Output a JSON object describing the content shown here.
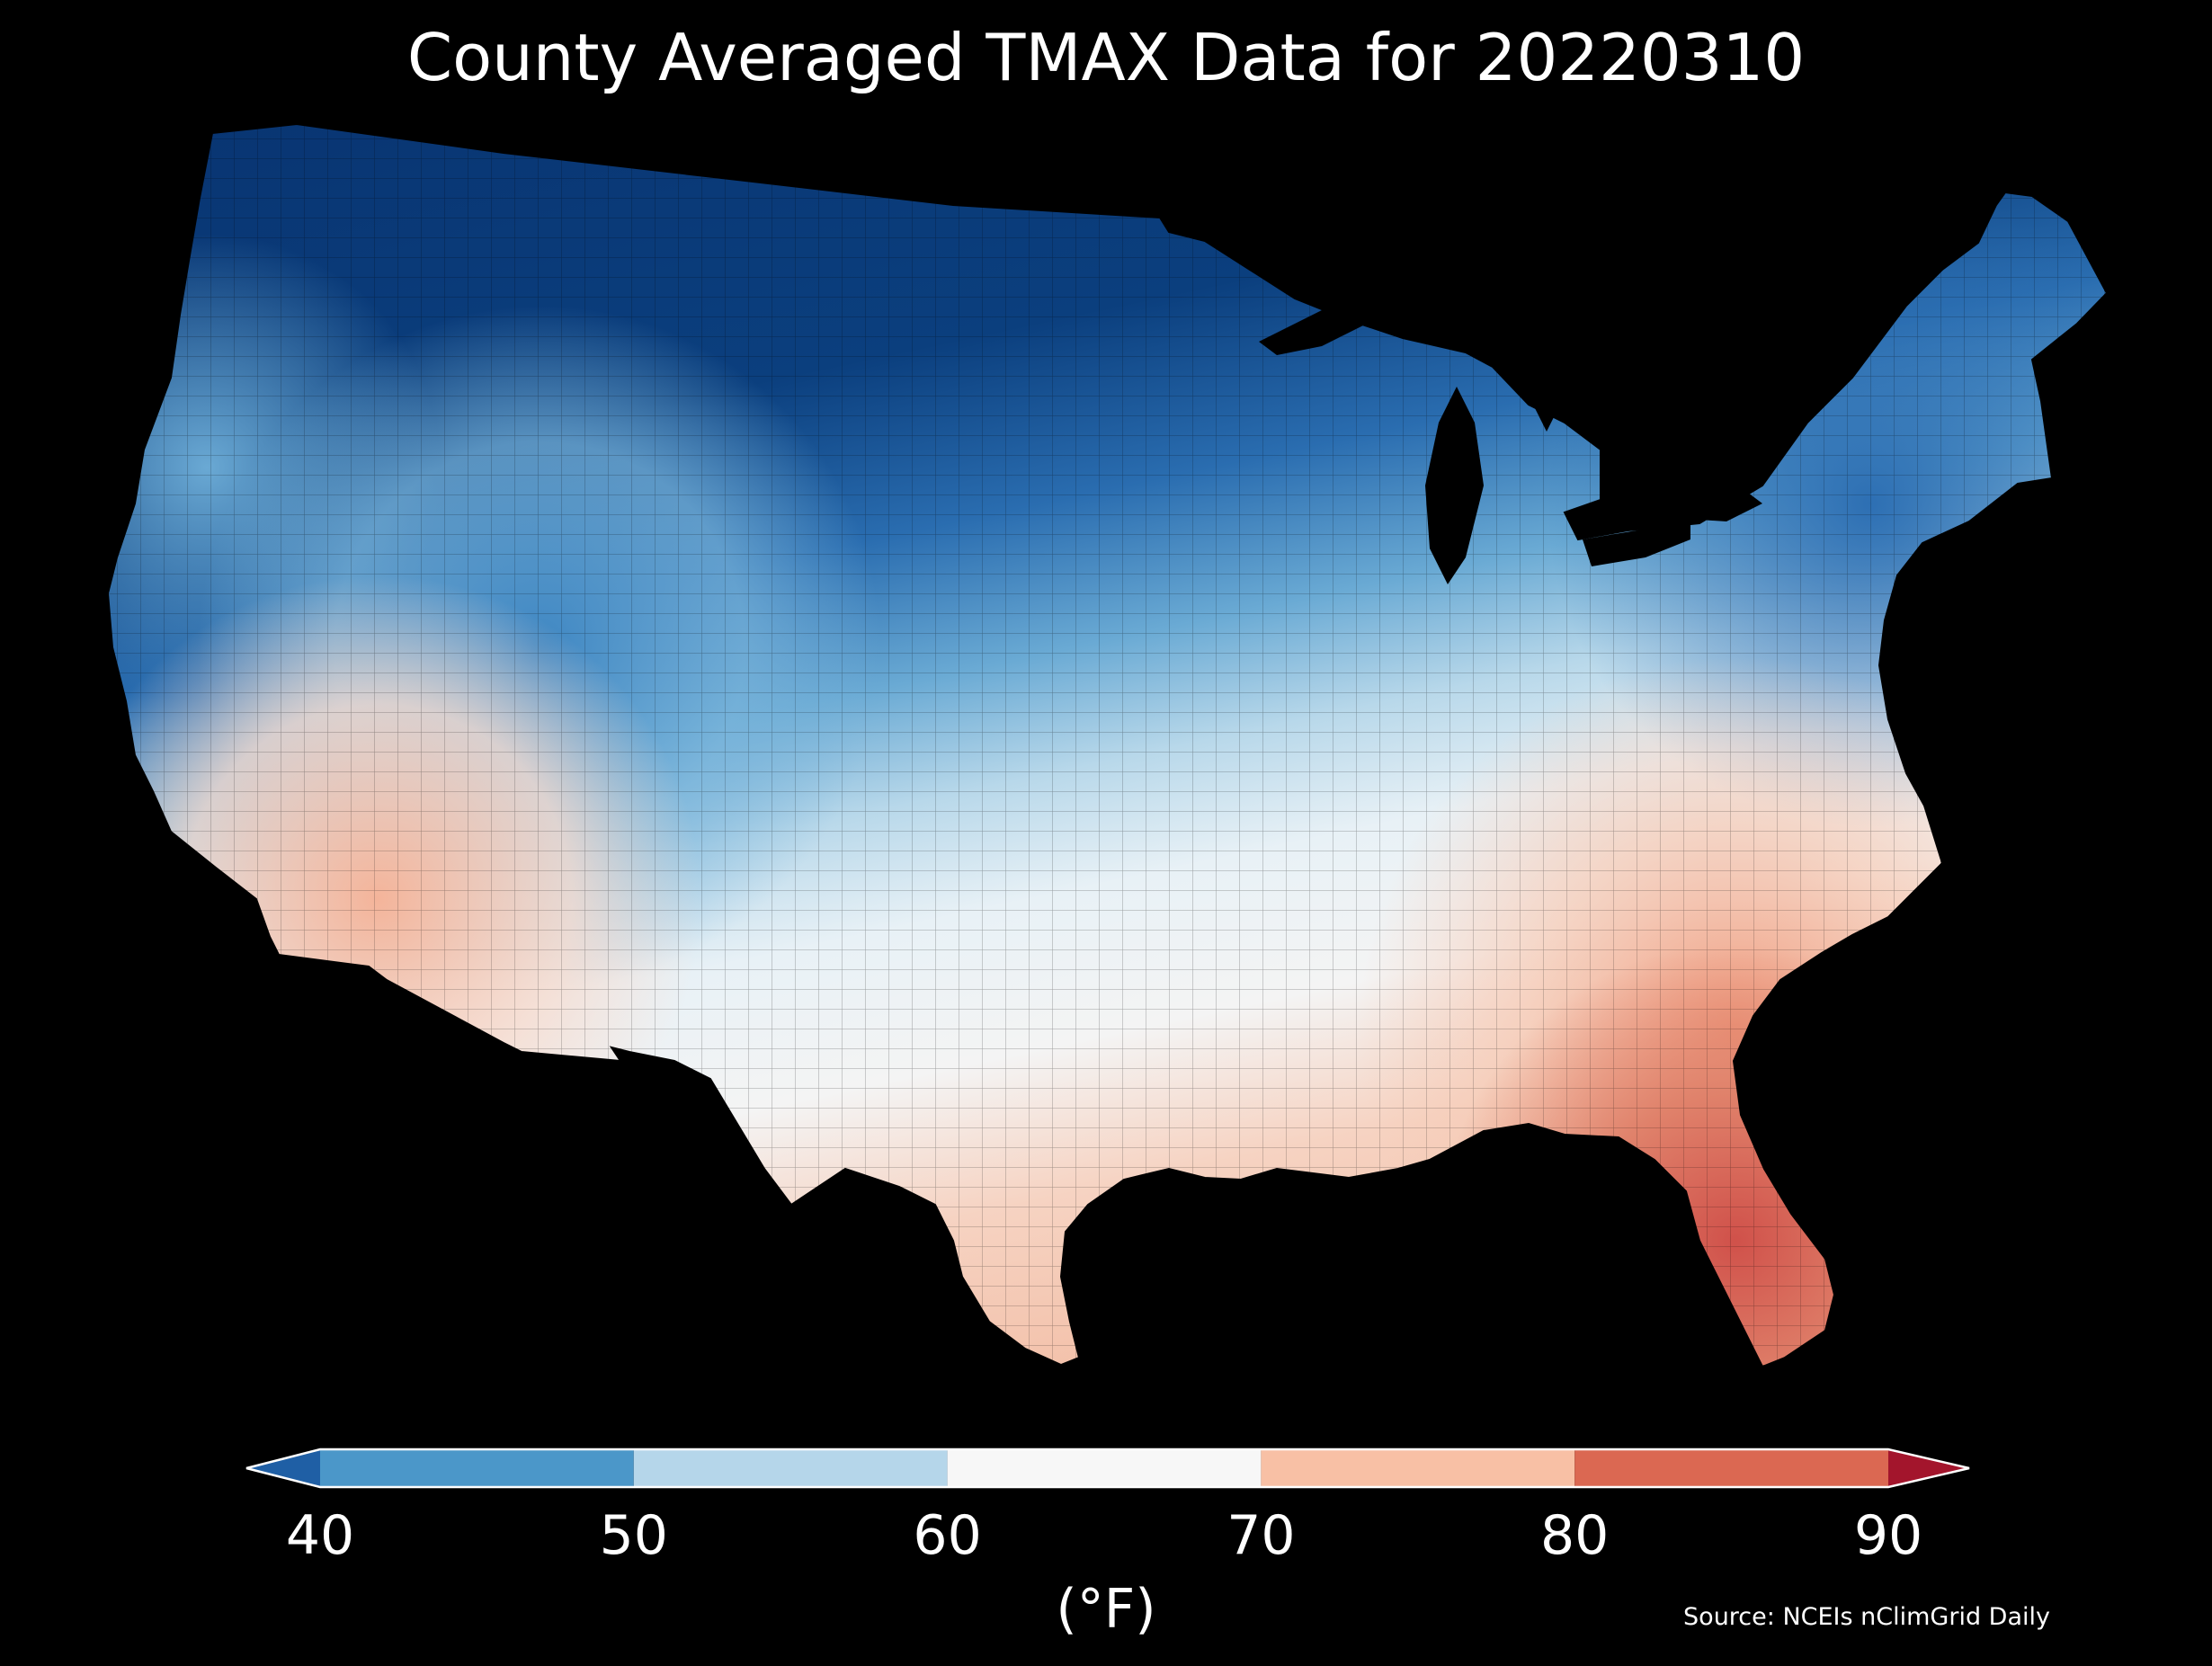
{
  "title": "County Averaged TMAX Data for 20220310",
  "colorbar": {
    "ticks": [
      "40",
      "50",
      "60",
      "70",
      "80",
      "90"
    ],
    "unit": "(°F)",
    "bins": [
      {
        "range": [
          40,
          50
        ],
        "color": "#4b97c9"
      },
      {
        "range": [
          50,
          60
        ],
        "color": "#b5d6ea"
      },
      {
        "range": [
          60,
          70
        ],
        "color": "#f7f7f7"
      },
      {
        "range": [
          70,
          80
        ],
        "color": "#f8c0a5"
      },
      {
        "range": [
          80,
          90
        ],
        "color": "#db6852"
      }
    ],
    "under_color": "#1f5fa5",
    "over_color": "#a3152c"
  },
  "source": "Source: NCEIs nClimGrid Daily",
  "background": "#000000"
}
